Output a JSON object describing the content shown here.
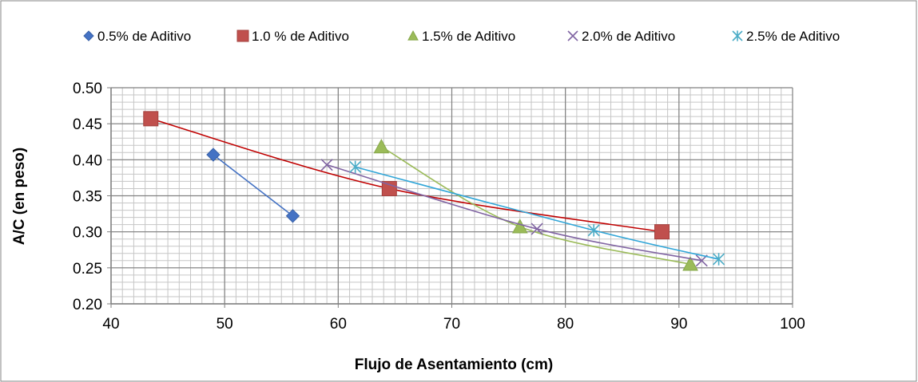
{
  "chart_data": {
    "type": "scatter",
    "title": "",
    "xlabel": "Flujo de Asentamiento  (cm)",
    "ylabel": "A/C (en peso)",
    "xlim": [
      40,
      100
    ],
    "ylim": [
      0.2,
      0.5
    ],
    "x_ticks": [
      "40",
      "50",
      "60",
      "70",
      "80",
      "90",
      "100"
    ],
    "y_ticks": [
      "0.20",
      "0.25",
      "0.30",
      "0.35",
      "0.40",
      "0.45",
      "0.50"
    ],
    "grid": "major and minor",
    "legend_position": "top",
    "series": [
      {
        "name": "0.5% de Aditivo",
        "marker": "diamond",
        "color": "#4472C4",
        "x": [
          49,
          56
        ],
        "y": [
          0.407,
          0.322
        ]
      },
      {
        "name": "1.0 % de Aditivo",
        "marker": "square",
        "color": "#C0504D",
        "line_color": "#C00000",
        "x": [
          43.5,
          64.5,
          88.5
        ],
        "y": [
          0.457,
          0.36,
          0.3
        ]
      },
      {
        "name": "1.5% de Aditivo",
        "marker": "triangle",
        "color": "#9BBB59",
        "x": [
          63.8,
          76,
          91
        ],
        "y": [
          0.418,
          0.307,
          0.255
        ]
      },
      {
        "name": "2.0% de Aditivo",
        "marker": "x",
        "color": "#8064A2",
        "x": [
          59,
          77.5,
          92
        ],
        "y": [
          0.393,
          0.304,
          0.26
        ]
      },
      {
        "name": "2.5% de Aditivo",
        "marker": "asterisk",
        "color": "#4BACC6",
        "line_color": "#31A6D8",
        "x": [
          61.5,
          82.5,
          93.5
        ],
        "y": [
          0.39,
          0.302,
          0.262
        ]
      }
    ]
  }
}
